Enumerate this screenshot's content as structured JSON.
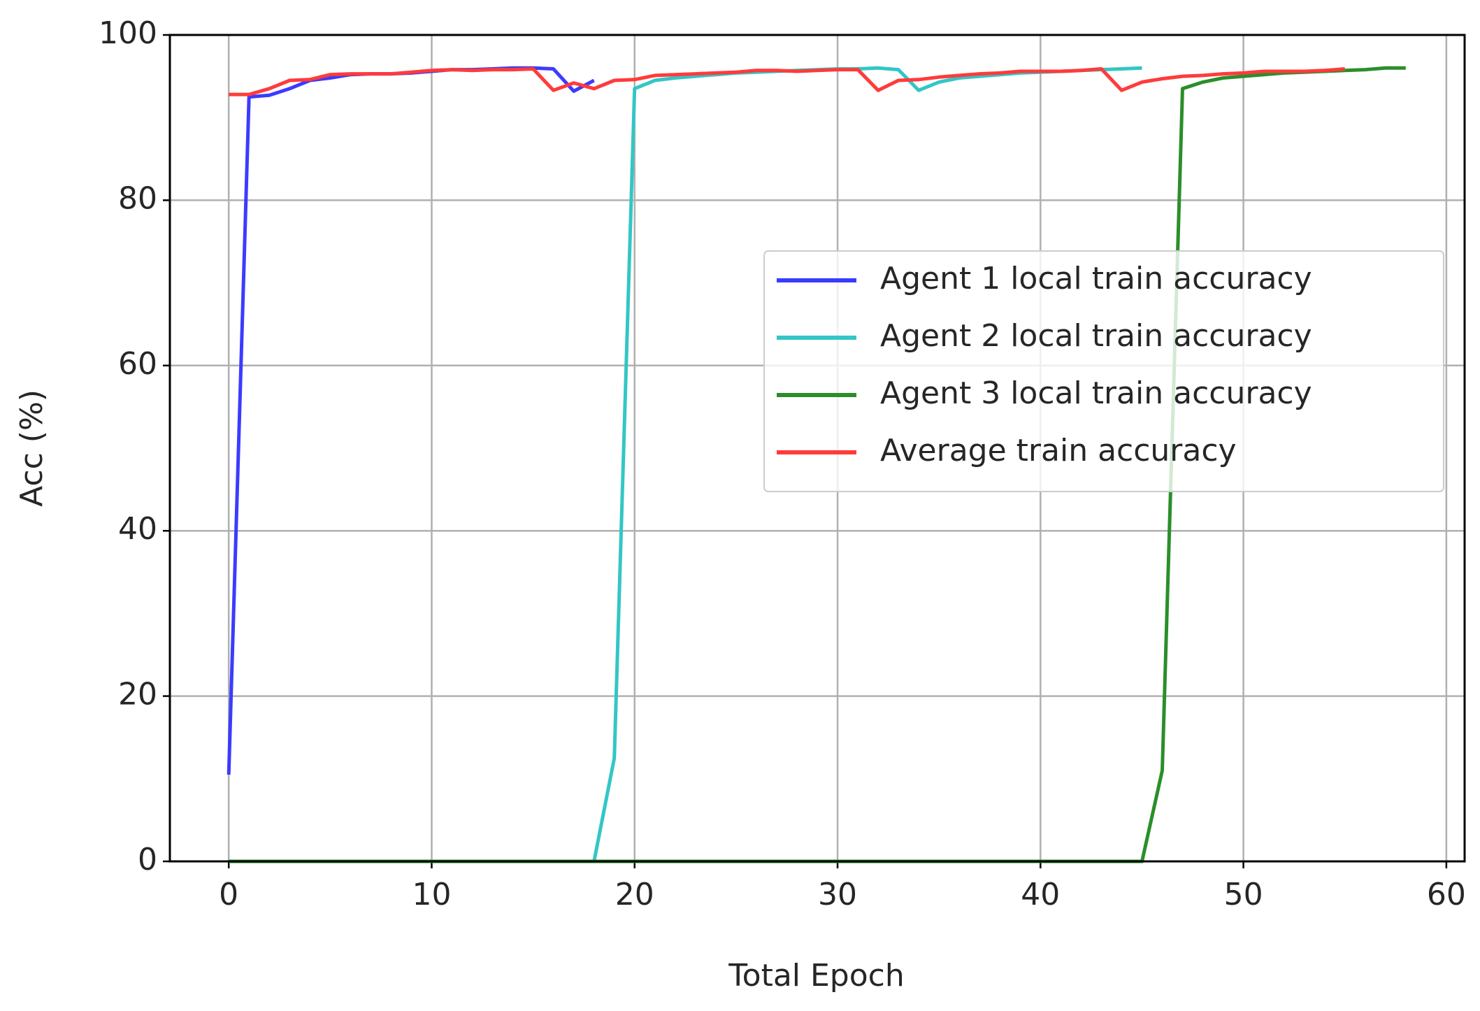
{
  "chart_data": {
    "type": "line",
    "xlabel": "Total Epoch",
    "ylabel": "Acc (%)",
    "xlim": [
      -2.9,
      60.9
    ],
    "ylim": [
      0,
      100
    ],
    "xticks": [
      0,
      10,
      20,
      30,
      40,
      50,
      60
    ],
    "yticks": [
      0,
      20,
      40,
      60,
      80,
      100
    ],
    "grid": true,
    "legend": "center right",
    "series": [
      {
        "name": "Agent 1 local train accuracy",
        "color": "#3b3bff",
        "x": [
          0,
          1,
          2,
          3,
          4,
          5,
          6,
          7,
          8,
          9,
          10,
          11,
          12,
          13,
          14,
          15,
          16,
          17,
          18
        ],
        "values": [
          10.5,
          92.5,
          92.7,
          93.5,
          94.5,
          94.8,
          95.2,
          95.3,
          95.3,
          95.4,
          95.6,
          95.8,
          95.8,
          95.9,
          96,
          96,
          95.9,
          93.2,
          94.5
        ]
      },
      {
        "name": "Agent 2 local train accuracy",
        "color": "#33c6c6",
        "x": [
          0,
          1,
          2,
          3,
          4,
          5,
          6,
          7,
          8,
          9,
          10,
          11,
          12,
          13,
          14,
          15,
          16,
          17,
          18,
          19,
          20,
          21,
          22,
          23,
          24,
          25,
          26,
          27,
          28,
          29,
          30,
          31,
          32,
          33,
          34,
          35,
          36,
          37,
          38,
          39,
          40,
          41,
          42,
          43,
          44,
          45
        ],
        "values": [
          0,
          0,
          0,
          0,
          0,
          0,
          0,
          0,
          0,
          0,
          0,
          0,
          0,
          0,
          0,
          0,
          0,
          0,
          0,
          12.5,
          93.5,
          94.5,
          94.8,
          95,
          95.2,
          95.4,
          95.5,
          95.6,
          95.7,
          95.8,
          95.9,
          95.9,
          96,
          95.8,
          93.3,
          94.3,
          94.8,
          95,
          95.2,
          95.4,
          95.5,
          95.6,
          95.7,
          95.8,
          95.9,
          96
        ]
      },
      {
        "name": "Agent 3 local train accuracy",
        "color": "#2a8f2a",
        "x": [
          0,
          1,
          2,
          3,
          4,
          5,
          6,
          7,
          8,
          9,
          10,
          11,
          12,
          13,
          14,
          15,
          16,
          17,
          18,
          19,
          20,
          21,
          22,
          23,
          24,
          25,
          26,
          27,
          28,
          29,
          30,
          31,
          32,
          33,
          34,
          35,
          36,
          37,
          38,
          39,
          40,
          41,
          42,
          43,
          44,
          45,
          46,
          47,
          48,
          49,
          50,
          51,
          52,
          53,
          54,
          55,
          56,
          57,
          58
        ],
        "values": [
          0,
          0,
          0,
          0,
          0,
          0,
          0,
          0,
          0,
          0,
          0,
          0,
          0,
          0,
          0,
          0,
          0,
          0,
          0,
          0,
          0,
          0,
          0,
          0,
          0,
          0,
          0,
          0,
          0,
          0,
          0,
          0,
          0,
          0,
          0,
          0,
          0,
          0,
          0,
          0,
          0,
          0,
          0,
          0,
          0,
          0,
          11,
          93.5,
          94.3,
          94.8,
          95,
          95.2,
          95.4,
          95.5,
          95.6,
          95.7,
          95.8,
          96,
          96
        ]
      },
      {
        "name": "Average train accuracy",
        "color": "#ff3b3b",
        "x": [
          0,
          1,
          2,
          3,
          4,
          5,
          6,
          7,
          8,
          9,
          10,
          11,
          12,
          13,
          14,
          15,
          16,
          17,
          18,
          19,
          20,
          21,
          22,
          23,
          24,
          25,
          26,
          27,
          28,
          29,
          30,
          31,
          32,
          33,
          34,
          35,
          36,
          37,
          38,
          39,
          40,
          41,
          42,
          43,
          44,
          45,
          46,
          47,
          48,
          49,
          50,
          51,
          52,
          53,
          54,
          55
        ],
        "values": [
          92.8,
          92.8,
          93.5,
          94.5,
          94.6,
          95.2,
          95.3,
          95.3,
          95.3,
          95.5,
          95.7,
          95.8,
          95.7,
          95.8,
          95.8,
          95.9,
          93.3,
          94.2,
          93.5,
          94.5,
          94.6,
          95.1,
          95.2,
          95.3,
          95.4,
          95.5,
          95.7,
          95.7,
          95.6,
          95.7,
          95.8,
          95.8,
          93.3,
          94.5,
          94.6,
          94.9,
          95.1,
          95.3,
          95.4,
          95.6,
          95.6,
          95.6,
          95.7,
          95.9,
          93.3,
          94.3,
          94.7,
          95,
          95.1,
          95.3,
          95.4,
          95.6,
          95.6,
          95.6,
          95.7,
          95.9
        ]
      }
    ]
  }
}
